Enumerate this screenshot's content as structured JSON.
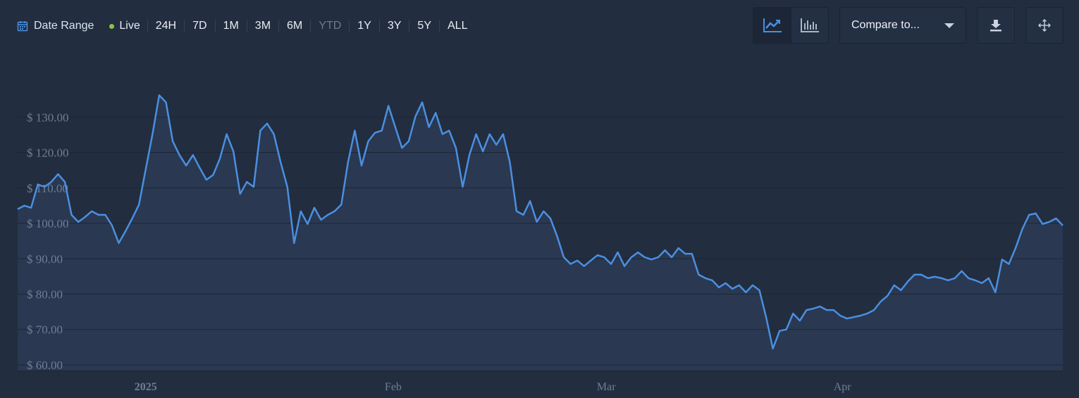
{
  "toolbar": {
    "date_range": "Date Range",
    "live": "Live",
    "ranges": [
      "24H",
      "7D",
      "1M",
      "3M",
      "6M",
      "YTD",
      "1Y",
      "3Y",
      "5Y",
      "ALL"
    ],
    "compare": "Compare to..."
  },
  "chart_data": {
    "type": "line",
    "color": "#4a8fe0",
    "grid": true,
    "values": [
      104,
      105,
      104.4,
      111,
      110.3,
      111.7,
      113.9,
      111.7,
      102.4,
      100.4,
      101.8,
      103.4,
      102.4,
      102.4,
      99.4,
      94.4,
      97.8,
      101.4,
      105.3,
      115.3,
      125.2,
      136.2,
      134.2,
      123.2,
      119.3,
      116.3,
      119.3,
      115.7,
      112.3,
      113.7,
      118.3,
      125.2,
      120.3,
      108.3,
      111.7,
      110.3,
      126.2,
      128.2,
      125.2,
      117.3,
      110.3,
      94.4,
      103.4,
      99.8,
      104.4,
      101,
      102.4,
      103.4,
      105.3,
      117.3,
      126.2,
      116.3,
      123.2,
      125.6,
      126.2,
      133.2,
      127.2,
      121.3,
      123.2,
      130.2,
      134.2,
      127.2,
      131.2,
      125.2,
      126.2,
      121.3,
      110.3,
      119.3,
      125.2,
      120.3,
      125.2,
      122.2,
      125.2,
      117.3,
      103.4,
      102.4,
      106.3,
      100.4,
      103.4,
      101.4,
      96.4,
      90.4,
      88.5,
      89.5,
      87.9,
      89.5,
      91,
      90.4,
      88.5,
      91.8,
      87.9,
      90.4,
      91.8,
      90.4,
      89.8,
      90.4,
      92.4,
      90.4,
      93,
      91.4,
      91.4,
      85.5,
      84.5,
      83.9,
      81.9,
      83.1,
      81.5,
      82.5,
      80.5,
      82.5,
      81.1,
      73.5,
      64.6,
      69.6,
      70,
      74.5,
      72.5,
      75.5,
      75.9,
      76.5,
      75.5,
      75.5,
      73.9,
      73.1,
      73.5,
      73.9,
      74.5,
      75.5,
      77.9,
      79.5,
      82.5,
      81.1,
      83.5,
      85.5,
      85.5,
      84.5,
      84.9,
      84.5,
      83.9,
      84.5,
      86.5,
      84.5,
      83.9,
      83.1,
      84.5,
      80.5,
      89.8,
      88.5,
      93,
      98.4,
      102.4,
      102.8,
      99.8,
      100.4,
      101.4,
      99.4
    ],
    "xlim": [
      0,
      155
    ],
    "xticks": [
      {
        "value": 19,
        "label": "2025"
      },
      {
        "value": 55.7,
        "label": "Feb"
      },
      {
        "value": 87.3,
        "label": "Mar"
      },
      {
        "value": 122.3,
        "label": "Apr"
      }
    ],
    "ylim": [
      58.4,
      143
    ],
    "yticks": [
      {
        "value": 60,
        "label": "$ 60.00"
      },
      {
        "value": 70,
        "label": "$ 70.00"
      },
      {
        "value": 80,
        "label": "$ 80.00"
      },
      {
        "value": 90,
        "label": "$ 90.00"
      },
      {
        "value": 100,
        "label": "$ 100.00"
      },
      {
        "value": 110,
        "label": "$ 110.00"
      },
      {
        "value": 120,
        "label": "$ 120.00"
      },
      {
        "value": 130,
        "label": "$ 130.00"
      }
    ]
  }
}
